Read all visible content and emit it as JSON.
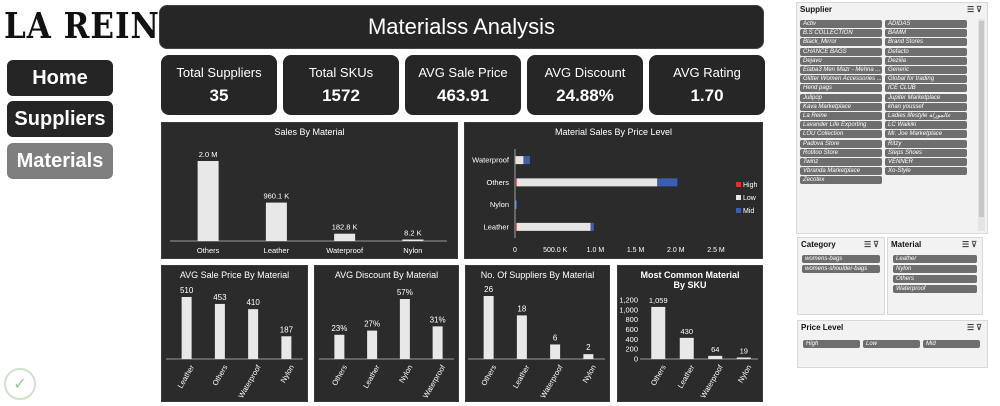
{
  "brand": {
    "logo": "LA REINE"
  },
  "nav": {
    "home": "Home",
    "suppliers": "Suppliers",
    "materials": "Materials"
  },
  "title": "Materialss Analysis",
  "kpis": [
    {
      "label": "Total Suppliers",
      "value": "35"
    },
    {
      "label": "Total SKUs",
      "value": "1572"
    },
    {
      "label": "AVG Sale Price",
      "value": "463.91"
    },
    {
      "label": "AVG Discount",
      "value": "24.88%"
    },
    {
      "label": "AVG Rating",
      "value": "1.70"
    }
  ],
  "slicers": {
    "supplier": {
      "title": "Supplier",
      "items": [
        "Activ",
        "ADIDAS",
        "B.S COLLECTION",
        "BAMM",
        "Black_Mirror",
        "Brand Stores",
        "CHANCE BAGS",
        "Defacto",
        "Dejavu",
        "Dezilia",
        "Elaba3 Men Mazr - Mehna ...",
        "Generic",
        "Glitter Women Accessories ...",
        "Global for trading",
        "Hend pags",
        "ICE CLUB",
        "Julipop",
        "Jupiter Marketplace",
        "Kava Marketplace",
        "khan youssef",
        "La Reine",
        "Ladies lifestyle عالمورلة",
        "Lavander Life Exporting",
        "LC Waikiki",
        "LOU Collection",
        "Mr. Joe Marketplace",
        "Padova Store",
        "Ritzy",
        "Rotitoo Store",
        "Steps Shoes",
        "Twinz",
        "VENNER",
        "Vbranda Marketplace",
        "Xo-Style",
        "Zecotex"
      ]
    },
    "category": {
      "title": "Category",
      "items": [
        "womens-bags",
        "womens-shoulder-bags"
      ]
    },
    "material": {
      "title": "Material",
      "items": [
        "Leather",
        "Nylon",
        "Others",
        "Waterproof"
      ]
    },
    "price_level": {
      "title": "Price Level",
      "items": [
        "High",
        "Low",
        "Mid"
      ]
    }
  },
  "chart_data": [
    {
      "type": "bar",
      "title": "Sales By Material",
      "categories": [
        "Others",
        "Leather",
        "Waterproof",
        "Nylon"
      ],
      "values": [
        2000000,
        960100,
        182800,
        8200
      ],
      "data_labels": [
        "2.0 M",
        "960.1 K",
        "182.8 K",
        "8.2 K"
      ]
    },
    {
      "type": "bar",
      "orientation": "horizontal",
      "stacked": true,
      "title": "Material Sales By Price Level",
      "categories": [
        "Waterproof",
        "Others",
        "Nylon",
        "Leather"
      ],
      "series": [
        {
          "name": "High",
          "values": [
            5000,
            20000,
            0,
            20000
          ],
          "color": "#e03030"
        },
        {
          "name": "Low",
          "values": [
            100000,
            1750000,
            5000,
            920000
          ],
          "color": "#e6e6e6"
        },
        {
          "name": "Mid",
          "values": [
            80000,
            250000,
            3000,
            40000
          ],
          "color": "#3a5fb0"
        }
      ],
      "x_ticks": [
        "0",
        "500.0 K",
        "1.0 M",
        "1.5 M",
        "2.0 M",
        "2.5 M"
      ],
      "xlim": [
        0,
        2500000
      ],
      "legend": "right"
    },
    {
      "type": "bar",
      "title": "AVG Sale Price By Material",
      "categories": [
        "Leather",
        "Others",
        "Waterproof",
        "Nylon"
      ],
      "values": [
        510,
        453,
        410,
        187
      ]
    },
    {
      "type": "bar",
      "title": "AVG Discount By Material",
      "categories": [
        "Others",
        "Leather",
        "Nylon",
        "Waterproof"
      ],
      "values": [
        23,
        27,
        57,
        31
      ],
      "data_labels": [
        "23%",
        "27%",
        "57%",
        "31%"
      ]
    },
    {
      "type": "bar",
      "title": "No. Of Suppliers By Material",
      "categories": [
        "Others",
        "Leather",
        "Waterproof",
        "Nylon"
      ],
      "values": [
        26,
        18,
        6,
        2
      ]
    },
    {
      "type": "bar",
      "title": "Most Common Material By SKU",
      "categories": [
        "Others",
        "Leather",
        "Waterproof",
        "Nylon"
      ],
      "values": [
        1059,
        430,
        64,
        19
      ],
      "data_labels": [
        "1,059",
        "430",
        "64",
        "19"
      ],
      "y_ticks": [
        "0",
        "200",
        "400",
        "600",
        "800",
        "1,000",
        "1,200"
      ],
      "ylim": [
        0,
        1200
      ]
    }
  ]
}
